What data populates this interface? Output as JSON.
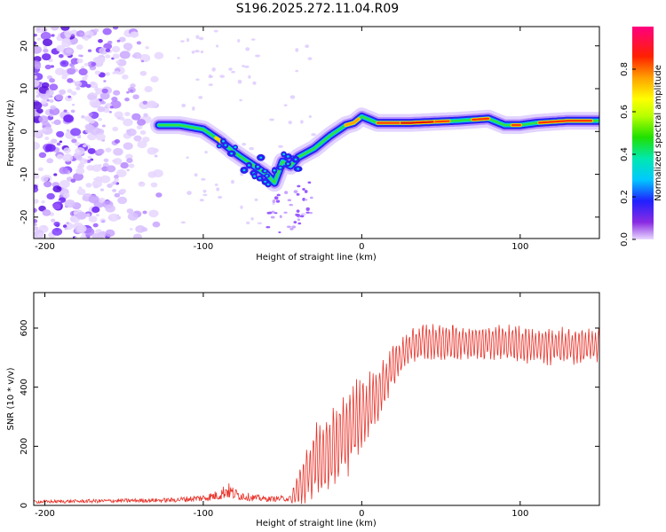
{
  "title": "S196.2025.272.11.04.R09",
  "chart_data": [
    {
      "type": "heatmap",
      "title": "S196.2025.272.11.04.R09",
      "xlabel": "Height of straight line (km)",
      "ylabel": "Frequency (Hz)",
      "xlim": [
        -207,
        150
      ],
      "ylim": [
        -25,
        24.5
      ],
      "xticks": [
        -200,
        -100,
        0,
        100
      ],
      "yticks": [
        -20,
        -10,
        0,
        10,
        20
      ],
      "colorbar": {
        "label": "Normalized spectral amplitude",
        "range": [
          0,
          1
        ],
        "ticks": [
          0.0,
          0.2,
          0.4,
          0.6,
          0.8
        ]
      },
      "ridge": {
        "description": "frequency ridge vs height",
        "x": [
          -128,
          -115,
          -100,
          -90,
          -80,
          -70,
          -60,
          -55,
          -50,
          -45,
          -40,
          -30,
          -20,
          -10,
          -5,
          0,
          10,
          30,
          60,
          80,
          90,
          100,
          110,
          130,
          150
        ],
        "y": [
          1.5,
          1.5,
          0.5,
          -2,
          -5,
          -7.5,
          -10,
          -12,
          -7,
          -8,
          -6,
          -4,
          -1,
          1.5,
          2,
          3.5,
          2,
          2,
          2.5,
          3,
          1.5,
          1.5,
          2,
          2.5,
          2.5
        ]
      },
      "noise_region": {
        "x_from": -207,
        "x_to": -128,
        "y_from": -25,
        "y_to": 24.5
      }
    },
    {
      "type": "line",
      "xlabel": "Height of straight line (km)",
      "ylabel": "SNR (10 * v/v)",
      "xlim": [
        -207,
        150
      ],
      "ylim": [
        0,
        720
      ],
      "xticks": [
        -200,
        -100,
        0,
        100
      ],
      "yticks": [
        0,
        200,
        400,
        600
      ],
      "color": "#e8332a",
      "envelope": {
        "x": [
          -207,
          -120,
          -100,
          -90,
          -85,
          -80,
          -70,
          -60,
          -45,
          -40,
          -30,
          -20,
          -10,
          0,
          10,
          20,
          30,
          40,
          60,
          80,
          100,
          120,
          150
        ],
        "base": [
          10,
          15,
          20,
          28,
          40,
          30,
          22,
          18,
          20,
          60,
          150,
          200,
          250,
          320,
          380,
          480,
          540,
          560,
          555,
          560,
          550,
          545,
          545
        ],
        "amp": [
          10,
          15,
          25,
          35,
          60,
          40,
          25,
          18,
          20,
          100,
          200,
          230,
          230,
          200,
          150,
          110,
          90,
          100,
          100,
          100,
          100,
          100,
          100
        ]
      }
    }
  ]
}
